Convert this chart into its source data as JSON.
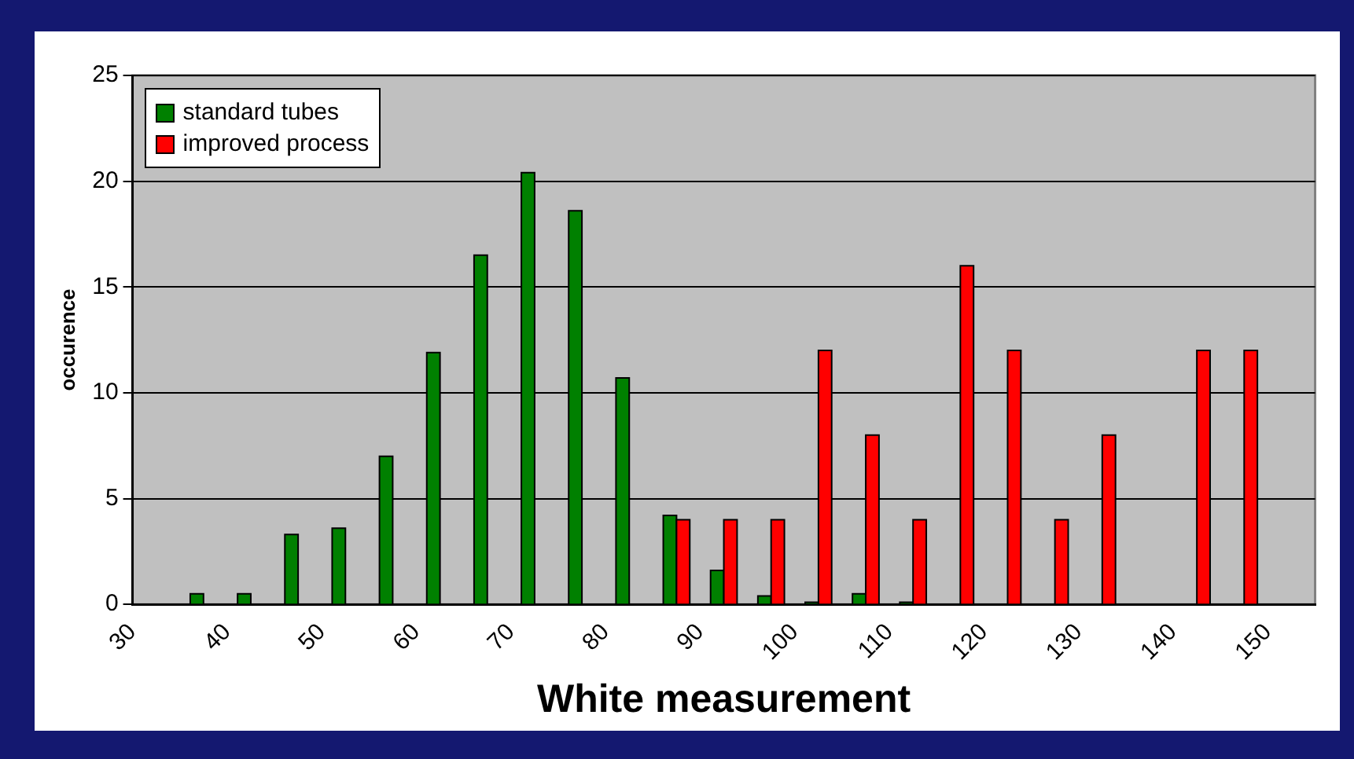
{
  "chart_data": {
    "type": "histogram",
    "xlabel": "White measurement",
    "ylabel": "occurence",
    "bins": [
      30,
      35,
      40,
      45,
      50,
      55,
      60,
      65,
      70,
      75,
      80,
      85,
      90,
      95,
      100,
      105,
      110,
      115,
      120,
      125,
      130,
      135,
      140,
      145,
      150,
      155
    ],
    "series": [
      {
        "name": "standard tubes",
        "color": "#008000",
        "values": [
          null,
          0.5,
          0.5,
          3.3,
          3.6,
          7.0,
          11.9,
          16.5,
          20.4,
          18.6,
          10.7,
          4.2,
          1.6,
          0.4,
          0.1,
          0.5,
          0.1,
          null,
          null,
          null,
          null,
          null,
          null,
          null,
          null
        ]
      },
      {
        "name": "improved process",
        "color": "#ff0000",
        "values": [
          null,
          null,
          null,
          null,
          null,
          null,
          null,
          null,
          null,
          null,
          null,
          4,
          4,
          4,
          12,
          8,
          4,
          16,
          12,
          4,
          8,
          null,
          12,
          12,
          null
        ]
      }
    ],
    "xlim": [
      30,
      155
    ],
    "xticks": [
      30,
      40,
      50,
      60,
      70,
      80,
      90,
      100,
      110,
      120,
      130,
      140,
      150
    ],
    "ylim": [
      0,
      25
    ],
    "yticks": [
      0,
      5,
      10,
      15,
      20,
      25
    ],
    "grid": "y",
    "legend": "top left"
  }
}
